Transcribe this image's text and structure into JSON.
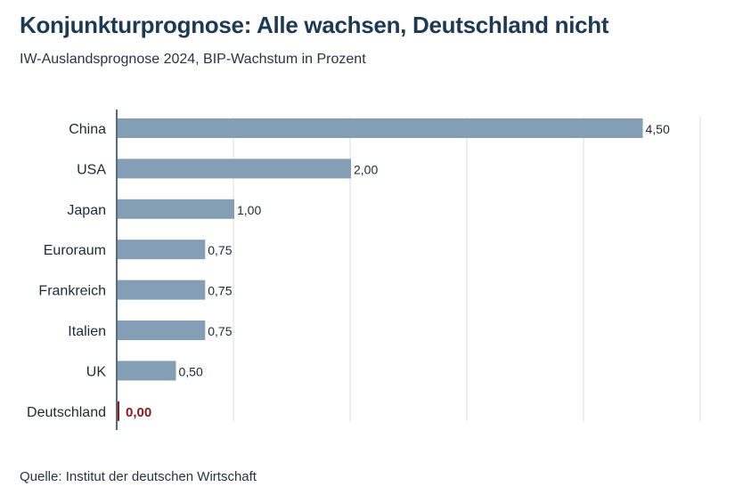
{
  "title": "Konjunkturprognose: Alle wachsen, Deutschland nicht",
  "subtitle": "IW-Auslandsprognose 2024, BIP-Wachstum in Prozent",
  "source": "Quelle: Institut der deutschen Wirtschaft",
  "chart_data": {
    "type": "bar",
    "orientation": "horizontal",
    "categories": [
      "China",
      "USA",
      "Japan",
      "Euroraum",
      "Frankreich",
      "Italien",
      "UK",
      "Deutschland"
    ],
    "values": [
      4.5,
      2.0,
      1.0,
      0.75,
      0.75,
      0.75,
      0.5,
      0.0
    ],
    "labels": [
      "4,50",
      "2,00",
      "1,00",
      "0,75",
      "0,75",
      "0,75",
      "0,50",
      "0,00"
    ],
    "xlim": [
      0,
      5
    ],
    "grid": true,
    "colors": {
      "default": "#849eb5",
      "highlight": "#8b1a1a"
    },
    "highlight_category": "Deutschland"
  }
}
